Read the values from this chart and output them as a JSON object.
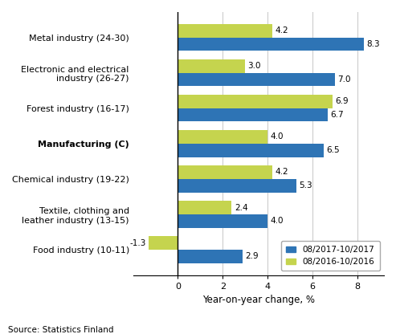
{
  "categories": [
    "Metal industry (24-30)",
    "Electronic and electrical\nindustry (26-27)",
    "Forest industry (16-17)",
    "Manufacturing (C)",
    "Chemical industry (19-22)",
    "Textile, clothing and\nleather industry (13-15)",
    "Food industry (10-11)"
  ],
  "series1_label": "08/2017-10/2017",
  "series2_label": "08/2016-10/2016",
  "series1_values": [
    8.3,
    7.0,
    6.7,
    6.5,
    5.3,
    4.0,
    2.9
  ],
  "series2_values": [
    4.2,
    3.0,
    6.9,
    4.0,
    4.2,
    2.4,
    -1.3
  ],
  "series1_color": "#2E74B5",
  "series2_color": "#C5D44E",
  "xlabel": "Year-on-year change, %",
  "xlim": [
    -2.0,
    9.2
  ],
  "xticks": [
    0,
    2,
    4,
    6,
    8
  ],
  "xtick_labels": [
    "0",
    "2",
    "4",
    "6",
    "8"
  ],
  "source_text": "Source: Statistics Finland",
  "bar_height": 0.38,
  "background_color": "#ffffff",
  "grid_color": "#cccccc"
}
